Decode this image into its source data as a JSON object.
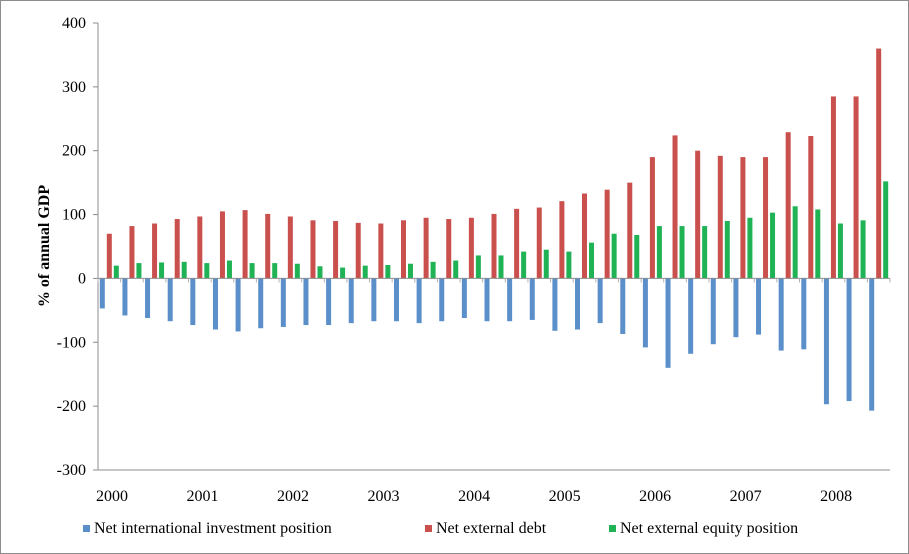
{
  "chart_data": {
    "type": "bar",
    "ylabel": "% of annual GDP",
    "ylim": [
      -300,
      400
    ],
    "yticks": [
      -300,
      -200,
      -100,
      0,
      100,
      200,
      300,
      400
    ],
    "x_tick_labels": [
      "2000",
      "2001",
      "2002",
      "2003",
      "2004",
      "2005",
      "2006",
      "2007",
      "2008"
    ],
    "periods_per_year": 4,
    "grid": false,
    "legend_position": "bottom",
    "series": [
      {
        "name": "Net international investment position",
        "color": "#5b8fc9",
        "values": [
          -47,
          -58,
          -62,
          -67,
          -73,
          -80,
          -83,
          -78,
          -76,
          -73,
          -73,
          -70,
          -67,
          -67,
          -70,
          -67,
          -62,
          -67,
          -67,
          -65,
          -82,
          -80,
          -70,
          -87,
          -108,
          -140,
          -118,
          -103,
          -92,
          -88,
          -113,
          -111,
          -197,
          -192,
          -207
        ]
      },
      {
        "name": "Net external debt",
        "color": "#c9504c",
        "values": [
          70,
          82,
          86,
          93,
          97,
          105,
          107,
          101,
          97,
          91,
          90,
          87,
          86,
          91,
          95,
          93,
          95,
          101,
          109,
          111,
          121,
          133,
          139,
          150,
          190,
          224,
          200,
          192,
          190,
          190,
          229,
          223,
          285,
          285,
          360
        ]
      },
      {
        "name": "Net external equity position",
        "color": "#1fb356",
        "values": [
          20,
          24,
          25,
          26,
          24,
          28,
          24,
          24,
          23,
          19,
          17,
          20,
          21,
          23,
          26,
          28,
          36,
          36,
          42,
          45,
          42,
          56,
          70,
          68,
          82,
          82,
          82,
          90,
          95,
          103,
          113,
          108,
          86,
          91,
          152
        ]
      }
    ]
  }
}
